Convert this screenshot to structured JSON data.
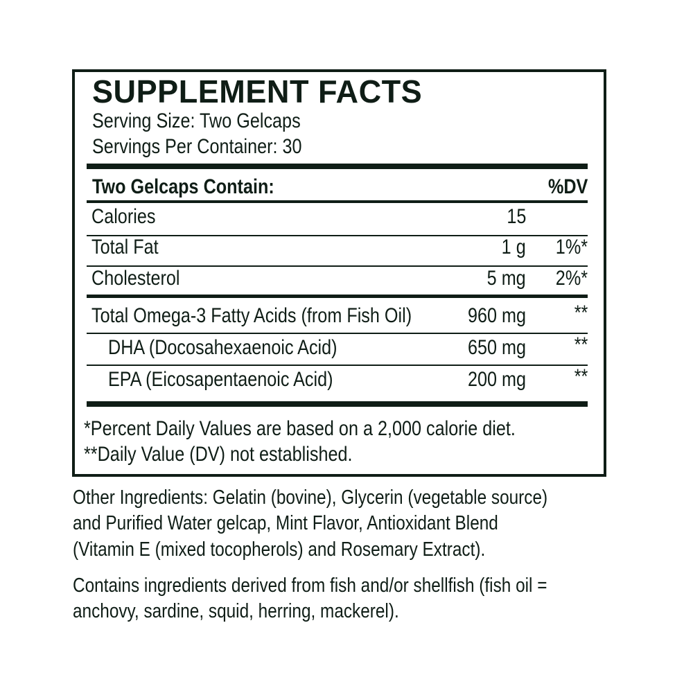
{
  "label": {
    "title": "SUPPLEMENT FACTS",
    "serving_size": "Serving Size: Two Gelcaps",
    "servings_per_container": "Servings Per Container: 30",
    "header": {
      "left": "Two Gelcaps Contain:",
      "right": "%DV"
    },
    "rows": [
      {
        "name": "Calories",
        "amount": "15",
        "dv": ""
      },
      {
        "name": "Total Fat",
        "amount": "1 g",
        "dv": "1%*"
      },
      {
        "name": "Cholesterol",
        "amount": "5 mg",
        "dv": "2%*"
      },
      {
        "name": "Total Omega-3 Fatty Acids (from Fish Oil)",
        "amount": "960 mg",
        "dv": "**"
      },
      {
        "name": "DHA (Docosahexaenoic Acid)",
        "amount": "650 mg",
        "dv": "**"
      },
      {
        "name": "EPA (Eicosapentaenoic Acid)",
        "amount": "200 mg",
        "dv": "**"
      }
    ],
    "footnotes": [
      "*Percent Daily Values are based on a 2,000 calorie diet.",
      "**Daily Value (DV) not established."
    ]
  },
  "other_ingredients": [
    "Other Ingredients: Gelatin (bovine), Glycerin (vegetable source)",
    "and Purified Water gelcap, Mint Flavor, Antioxidant Blend",
    "(Vitamin E (mixed tocopherols) and Rosemary Extract)."
  ],
  "allergen": [
    "Contains ingredients derived from fish and/or shellfish (fish oil =",
    "anchovy, sardine, squid, herring, mackerel)."
  ],
  "colors": {
    "ink": "#0f1d16",
    "background": "#ffffff"
  }
}
